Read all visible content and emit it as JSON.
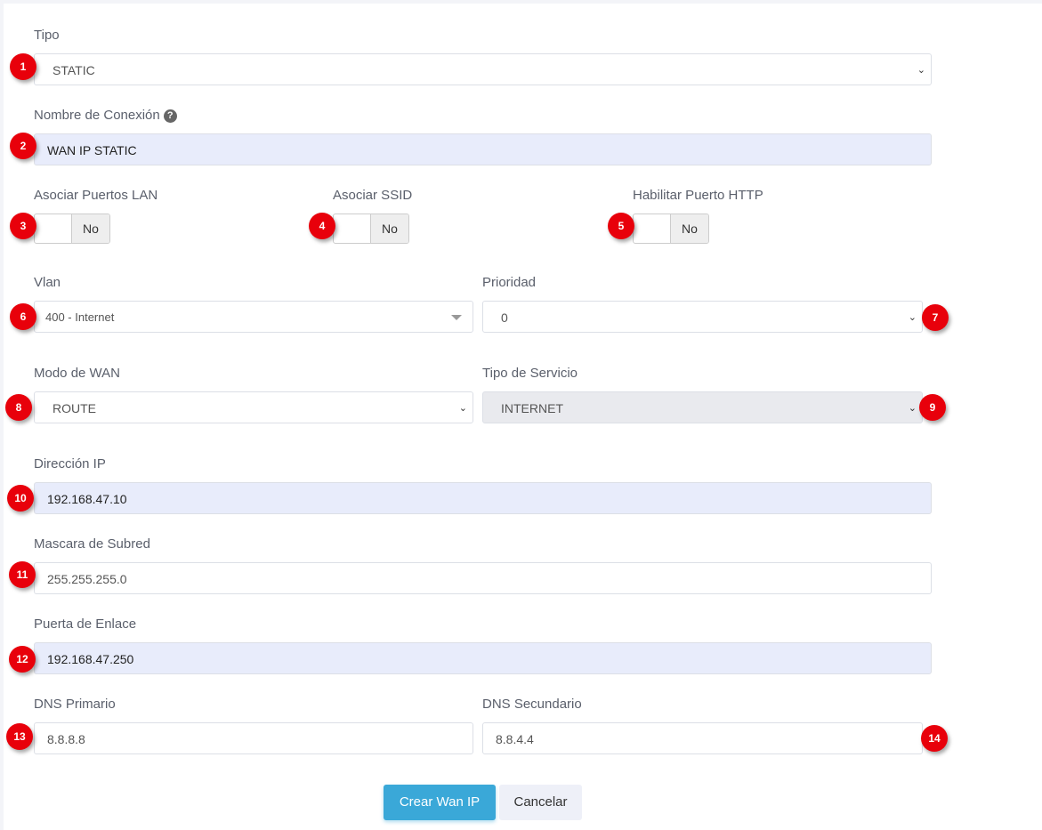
{
  "fields": {
    "tipo": {
      "label": "Tipo",
      "value": "STATIC",
      "badge": "1"
    },
    "nombre": {
      "label": "Nombre de Conexión",
      "value": "WAN IP STATIC",
      "badge": "2"
    },
    "lan": {
      "label": "Asociar Puertos LAN",
      "value": "No",
      "badge": "3"
    },
    "ssid": {
      "label": "Asociar SSID",
      "value": "No",
      "badge": "4"
    },
    "http": {
      "label": "Habilitar Puerto HTTP",
      "value": "No",
      "badge": "5"
    },
    "vlan": {
      "label": "Vlan",
      "value": "400 - Internet",
      "badge": "6"
    },
    "prioridad": {
      "label": "Prioridad",
      "value": "0",
      "badge": "7"
    },
    "modo": {
      "label": "Modo de WAN",
      "value": "ROUTE",
      "badge": "8"
    },
    "servicio": {
      "label": "Tipo de Servicio",
      "value": "INTERNET",
      "badge": "9"
    },
    "ip": {
      "label": "Dirección IP",
      "value": "192.168.47.10",
      "badge": "10"
    },
    "mascara": {
      "label": "Mascara de Subred",
      "value": "255.255.255.0",
      "badge": "11"
    },
    "puerta": {
      "label": "Puerta de Enlace",
      "value": "192.168.47.250",
      "badge": "12"
    },
    "dns1": {
      "label": "DNS Primario",
      "value": "8.8.8.8",
      "badge": "13"
    },
    "dns2": {
      "label": "DNS Secundario",
      "value": "8.8.4.4",
      "badge": "14"
    }
  },
  "buttons": {
    "create": "Crear Wan IP",
    "cancel": "Cancelar"
  },
  "colors": {
    "primary": "#3aa8d8",
    "badge": "#e8000b",
    "filled": "#e8ecfb"
  }
}
